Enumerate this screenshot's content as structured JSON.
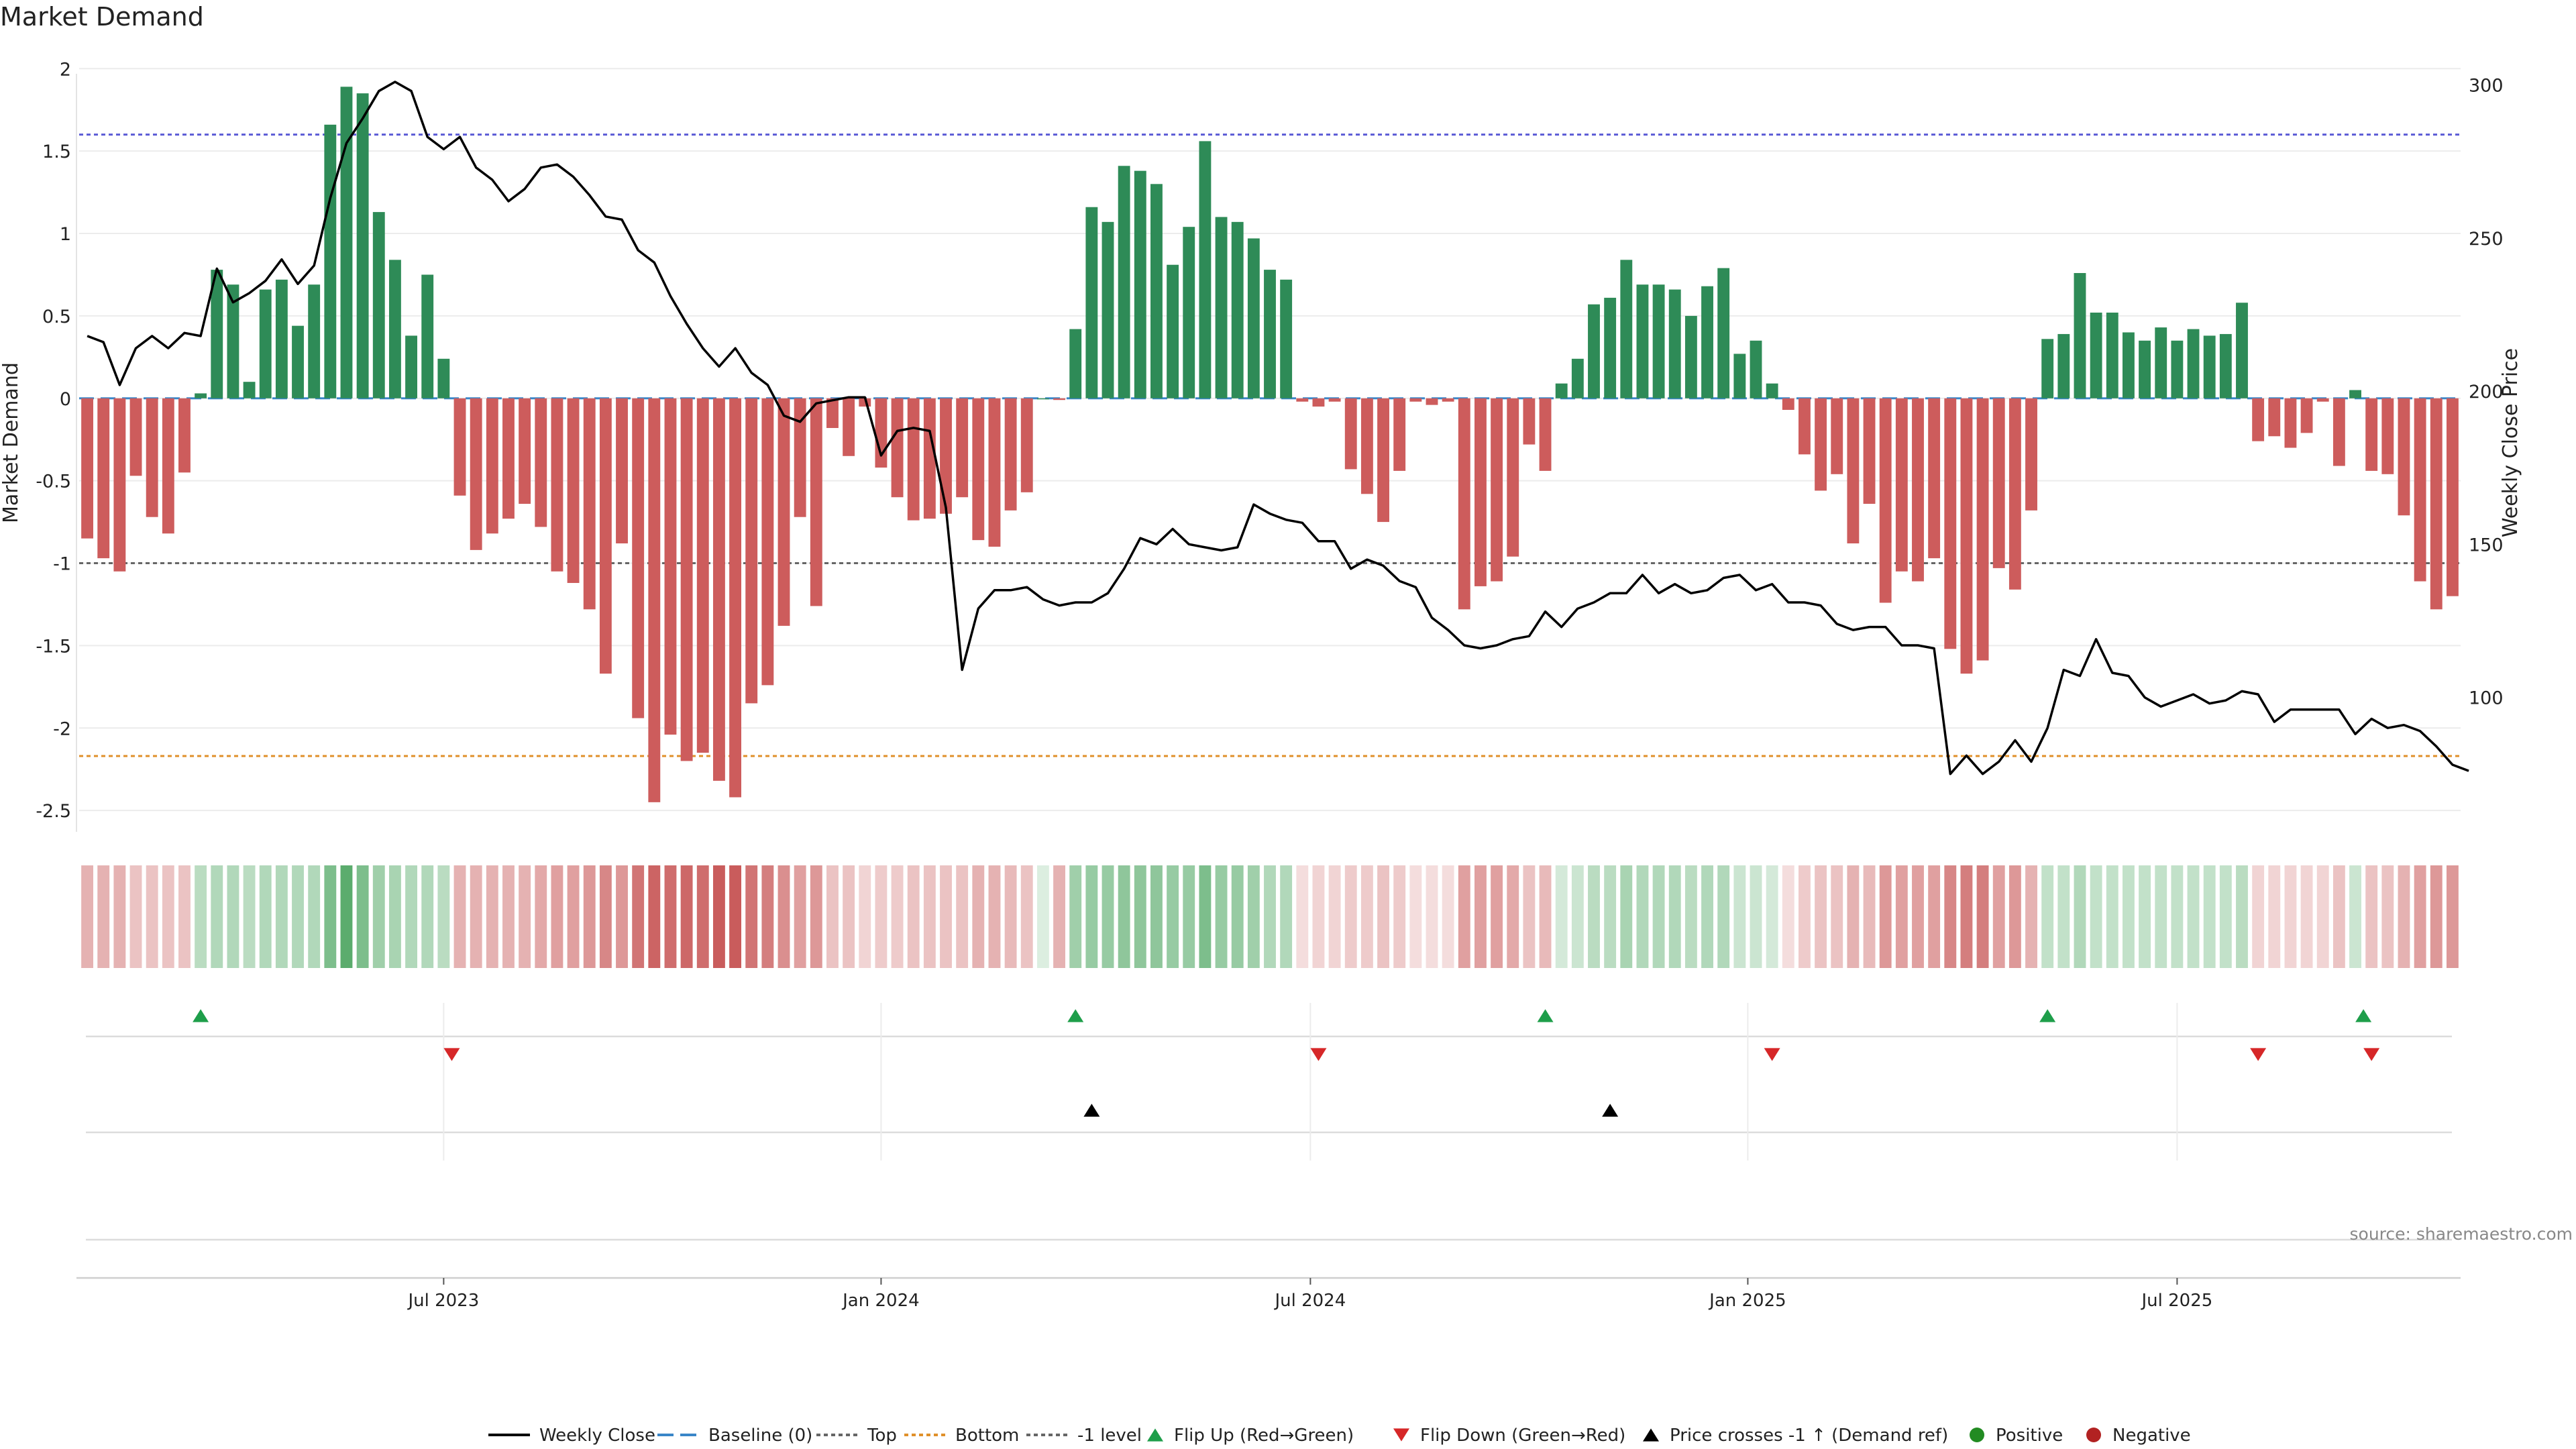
{
  "title": "Market Demand",
  "source": "source: sharemaestro.com",
  "colors": {
    "green": "#2e8b57",
    "red": "#cd5c5c",
    "price": "#000000",
    "top": "#5b5bd6",
    "bottom": "#e0902a",
    "minus1": "#666666",
    "baseline": "#3a86c8",
    "flip_up": "#1e9e4a",
    "flip_down": "#d62728",
    "cross": "#000000",
    "positive": "#228b22",
    "negative": "#b22222"
  },
  "chart_data": {
    "type": "bar",
    "title": "Market Demand",
    "ylabel": "Market Demand",
    "y2label": "Weekly Close Price",
    "ylim": [
      -2.65,
      2.05
    ],
    "y_ticks": [
      "2",
      "1.5",
      "1",
      "0.5",
      "0",
      "-0.5",
      "-1",
      "-1.5",
      "-2",
      "-2.5"
    ],
    "y_tick_values": [
      2,
      1.5,
      1,
      0.5,
      0,
      -0.5,
      -1,
      -1.5,
      -2,
      -2.5
    ],
    "y2lim": [
      55,
      308
    ],
    "y2_ticks": [
      "300",
      "250",
      "200",
      "150",
      "100"
    ],
    "y2_tick_values": [
      300,
      250,
      200,
      150,
      100
    ],
    "reference_lines": {
      "top": 1.6,
      "bottom": -2.17,
      "minus1": -1.0,
      "baseline": 0
    },
    "x_tick_labels": [
      "Jul 2023",
      "Jan 2024",
      "Jul 2024",
      "Jan 2025",
      "Jul 2025"
    ],
    "x_tick_weeks": [
      22.5,
      49.5,
      76,
      103,
      129.5
    ],
    "demand": [
      -0.85,
      -0.97,
      -1.05,
      -0.47,
      -0.72,
      -0.82,
      -0.45,
      0.03,
      0.78,
      0.69,
      0.1,
      0.66,
      0.72,
      0.44,
      0.69,
      1.66,
      1.89,
      1.85,
      1.13,
      0.84,
      0.38,
      0.75,
      0.24,
      -0.59,
      -0.92,
      -0.82,
      -0.73,
      -0.64,
      -0.78,
      -1.05,
      -1.12,
      -1.28,
      -1.67,
      -0.88,
      -1.94,
      -2.45,
      -2.04,
      -2.2,
      -2.15,
      -2.32,
      -2.42,
      -1.85,
      -1.74,
      -1.38,
      -0.72,
      -1.26,
      -0.18,
      -0.35,
      -0.05,
      -0.42,
      -0.6,
      -0.74,
      -0.73,
      -0.7,
      -0.6,
      -0.86,
      -0.9,
      -0.68,
      -0.57,
      0.0,
      -0.01,
      0.42,
      1.16,
      1.07,
      1.41,
      1.38,
      1.3,
      0.81,
      1.04,
      1.56,
      1.1,
      1.07,
      0.97,
      0.78,
      0.72,
      -0.02,
      -0.05,
      -0.02,
      -0.43,
      -0.58,
      -0.75,
      -0.44,
      -0.02,
      -0.04,
      -0.02,
      -1.28,
      -1.14,
      -1.11,
      -0.96,
      -0.28,
      -0.44,
      0.09,
      0.24,
      0.57,
      0.61,
      0.84,
      0.69,
      0.69,
      0.66,
      0.5,
      0.68,
      0.79,
      0.27,
      0.35,
      0.09,
      -0.07,
      -0.34,
      -0.56,
      -0.46,
      -0.88,
      -0.64,
      -1.24,
      -1.05,
      -1.11,
      -0.97,
      -1.52,
      -1.67,
      -1.59,
      -1.03,
      -1.16,
      -0.68,
      0.36,
      0.39,
      0.76,
      0.52,
      0.52,
      0.4,
      0.35,
      0.43,
      0.35,
      0.42,
      0.38,
      0.39,
      0.58,
      -0.26,
      -0.23,
      -0.3,
      -0.21,
      -0.02,
      -0.41,
      0.05,
      -0.44,
      -0.46,
      -0.71,
      -1.11,
      -1.28,
      -1.2
    ],
    "weekly_close": [
      218,
      216,
      202,
      214,
      218,
      214,
      219,
      218,
      240,
      229,
      232,
      236,
      243,
      235,
      241,
      263,
      281,
      289,
      298,
      301,
      298,
      283,
      279,
      283,
      273,
      269,
      262,
      266,
      273,
      274,
      270,
      264,
      257,
      256,
      246,
      242,
      231,
      222,
      214,
      208,
      214,
      206,
      202,
      192,
      190,
      196,
      197,
      198,
      198,
      179,
      187,
      188,
      187,
      162,
      109,
      129,
      135,
      135,
      136,
      132,
      130,
      131,
      131,
      134,
      142,
      152,
      150,
      155,
      150,
      149,
      148,
      149,
      163,
      160,
      158,
      157,
      151,
      151,
      142,
      145,
      143,
      138,
      136,
      126,
      122,
      117,
      116,
      117,
      119,
      120,
      128,
      123,
      129,
      131,
      134,
      134,
      140,
      134,
      137,
      134,
      135,
      139,
      140,
      135,
      137,
      131,
      131,
      130,
      124,
      122,
      123,
      123,
      117,
      117,
      116,
      75,
      81,
      75,
      79,
      86,
      79,
      90,
      109,
      107,
      119,
      108,
      107,
      100,
      97,
      99,
      101,
      98,
      99,
      102,
      101,
      92,
      96,
      96,
      96,
      96,
      88,
      93,
      90,
      91,
      89,
      84,
      78,
      76
    ],
    "band_intensity": [
      0.45,
      0.45,
      0.45,
      0.35,
      0.35,
      0.35,
      0.35,
      0.4,
      0.45,
      0.45,
      0.4,
      0.45,
      0.45,
      0.45,
      0.45,
      0.75,
      0.95,
      0.75,
      0.55,
      0.5,
      0.45,
      0.45,
      0.4,
      0.45,
      0.45,
      0.45,
      0.45,
      0.45,
      0.5,
      0.55,
      0.55,
      0.6,
      0.7,
      0.6,
      0.8,
      0.9,
      0.85,
      0.88,
      0.85,
      0.95,
      0.95,
      0.8,
      0.75,
      0.65,
      0.55,
      0.6,
      0.35,
      0.35,
      0.25,
      0.3,
      0.3,
      0.35,
      0.35,
      0.35,
      0.35,
      0.45,
      0.45,
      0.4,
      0.35,
      0.2,
      0.45,
      0.55,
      0.6,
      0.6,
      0.65,
      0.65,
      0.65,
      0.6,
      0.6,
      0.75,
      0.6,
      0.6,
      0.55,
      0.45,
      0.45,
      0.2,
      0.25,
      0.25,
      0.3,
      0.3,
      0.35,
      0.3,
      0.2,
      0.2,
      0.2,
      0.55,
      0.55,
      0.55,
      0.5,
      0.35,
      0.4,
      0.25,
      0.3,
      0.4,
      0.4,
      0.5,
      0.45,
      0.45,
      0.45,
      0.4,
      0.45,
      0.45,
      0.3,
      0.3,
      0.25,
      0.2,
      0.3,
      0.35,
      0.35,
      0.45,
      0.4,
      0.6,
      0.55,
      0.55,
      0.55,
      0.7,
      0.75,
      0.75,
      0.55,
      0.6,
      0.45,
      0.35,
      0.35,
      0.45,
      0.35,
      0.35,
      0.35,
      0.35,
      0.35,
      0.35,
      0.35,
      0.35,
      0.35,
      0.4,
      0.25,
      0.25,
      0.25,
      0.25,
      0.25,
      0.35,
      0.3,
      0.35,
      0.35,
      0.45,
      0.55,
      0.6,
      0.6
    ],
    "flip_up_weeks": [
      7.5,
      61.5,
      90.5,
      121.5,
      141.0
    ],
    "flip_down_weeks": [
      23.0,
      76.5,
      104.5,
      134.5,
      141.5
    ],
    "price_cross_weeks": [
      62.5,
      94.5
    ]
  },
  "legend": [
    {
      "key": "weekly_close",
      "label": "Weekly Close"
    },
    {
      "key": "baseline",
      "label": "Baseline (0)"
    },
    {
      "key": "top",
      "label": "Top"
    },
    {
      "key": "bottom",
      "label": "Bottom"
    },
    {
      "key": "minus1",
      "label": "-1 level"
    },
    {
      "key": "flip_up",
      "label": "Flip Up (Red→Green)"
    },
    {
      "key": "flip_down",
      "label": "Flip Down (Green→Red)"
    },
    {
      "key": "cross",
      "label": "Price crosses -1 ↑ (Demand ref)"
    },
    {
      "key": "positive",
      "label": "Positive"
    },
    {
      "key": "negative",
      "label": "Negative"
    }
  ]
}
